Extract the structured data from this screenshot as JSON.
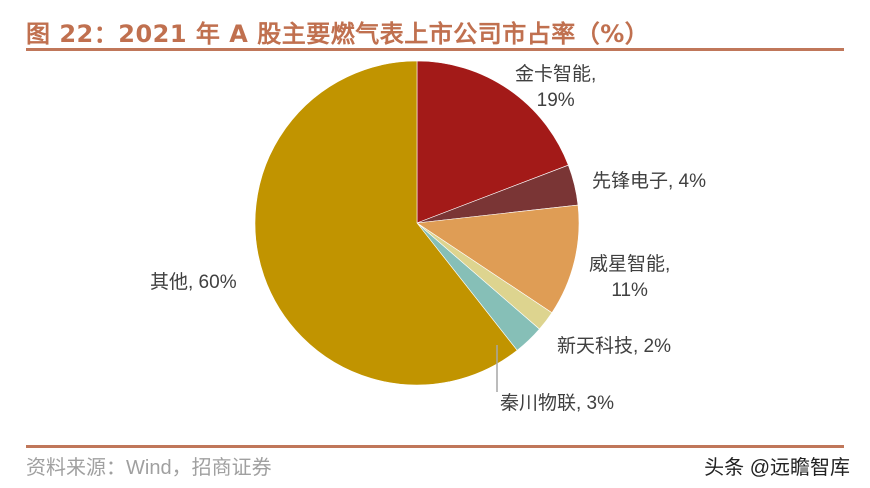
{
  "header": {
    "title": "图 22：2021 年 A 股主要燃气表上市公司市占率（%）"
  },
  "chart_data": {
    "type": "pie",
    "title": "图 22：2021 年 A 股主要燃气表上市公司市占率（%）",
    "categories": [
      "金卡智能",
      "先锋电子",
      "威星智能",
      "新天科技",
      "秦川物联",
      "其他"
    ],
    "values": [
      19,
      4,
      11,
      2,
      3,
      60
    ],
    "unit": "%",
    "colors": [
      "#a31a18",
      "#7a3535",
      "#df9d55",
      "#ddd48f",
      "#86bfb7",
      "#c19400"
    ],
    "start_angle": "12 o'clock, clockwise",
    "legend": "none (data labels)"
  },
  "labels": {
    "jinka": {
      "name": "金卡智能,",
      "pct": "19%"
    },
    "xianfeng": {
      "text": "先锋电子, 4%"
    },
    "weixing": {
      "name": "威星智能,",
      "pct": "11%"
    },
    "xintian": {
      "text": "新天科技, 2%"
    },
    "qinchuan": {
      "text": "秦川物联, 3%"
    },
    "other": {
      "text": "其他, 60%"
    }
  },
  "footer": {
    "source": "资料来源：Wind，招商证券",
    "watermark": "头条 @远瞻智库"
  }
}
